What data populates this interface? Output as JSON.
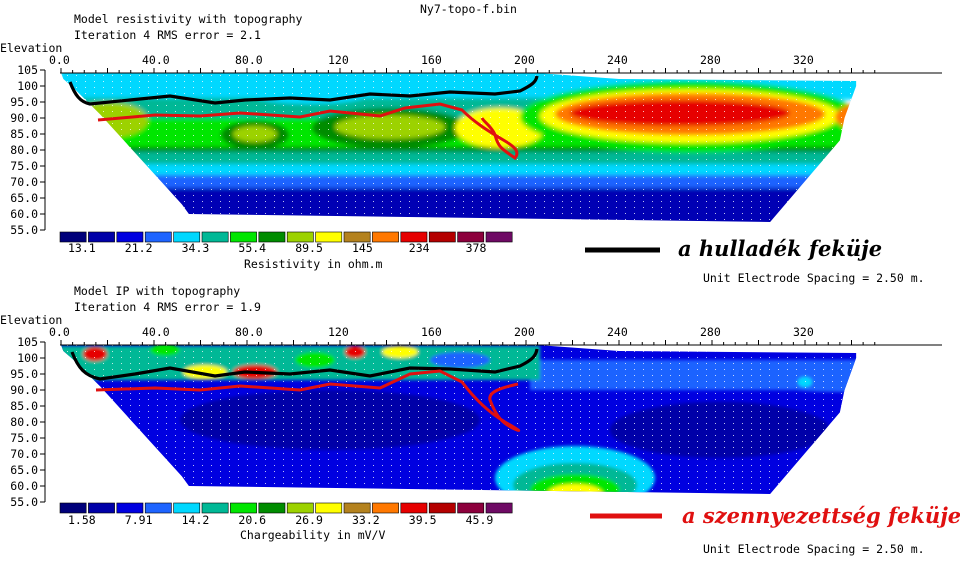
{
  "file_title": "Ny7-topo-f.bin",
  "chart_data": [
    {
      "type": "heatmap",
      "title": "Model resistivity with topography",
      "subtitle": "Iteration 4 RMS error = 2.1",
      "ylabel": "Elevation",
      "x_ticks": [
        "0.0",
        "40.0",
        "80.0",
        "120",
        "160",
        "200",
        "240",
        "280",
        "320"
      ],
      "x_tick_values": [
        0,
        40,
        80,
        120,
        160,
        200,
        240,
        280,
        320
      ],
      "y_ticks": [
        "105",
        "100",
        "95.0",
        "90.0",
        "85.0",
        "80.0",
        "75.0",
        "70.0",
        "65.0",
        "60.0",
        "55.0"
      ],
      "y_tick_values": [
        105,
        100,
        95,
        90,
        85,
        80,
        75,
        70,
        65,
        60,
        55
      ],
      "xlim": [
        0,
        340
      ],
      "ylim": [
        55,
        105
      ],
      "colorbar_label": "Resistivity in ohm.m",
      "colorbar_values": [
        "13.1",
        "21.2",
        "34.3",
        "55.4",
        "89.5",
        "145",
        "234",
        "378"
      ],
      "colorbar_colors": [
        "#00007a",
        "#0000a8",
        "#0000e0",
        "#1e64ff",
        "#00d8ff",
        "#00b896",
        "#00e600",
        "#008c00",
        "#9cd200",
        "#ffff00",
        "#b4821e",
        "#ff7800",
        "#e60000",
        "#b40000",
        "#8c003c",
        "#6e0a64"
      ],
      "spacing_note": "Unit Electrode Spacing = 2.50 m."
    },
    {
      "type": "heatmap",
      "title": "Model IP with topography",
      "subtitle": "Iteration 4 RMS error = 1.9",
      "ylabel": "Elevation",
      "x_ticks": [
        "0.0",
        "40.0",
        "80.0",
        "120",
        "160",
        "200",
        "240",
        "280",
        "320"
      ],
      "x_tick_values": [
        0,
        40,
        80,
        120,
        160,
        200,
        240,
        280,
        320
      ],
      "y_ticks": [
        "105",
        "100",
        "95.0",
        "90.0",
        "85.0",
        "80.0",
        "75.0",
        "70.0",
        "65.0",
        "60.0",
        "55.0"
      ],
      "y_tick_values": [
        105,
        100,
        95,
        90,
        85,
        80,
        75,
        70,
        65,
        60,
        55
      ],
      "xlim": [
        0,
        340
      ],
      "ylim": [
        55,
        105
      ],
      "colorbar_label": "Chargeability in mV/V",
      "colorbar_values": [
        "1.58",
        "7.91",
        "14.2",
        "20.6",
        "26.9",
        "33.2",
        "39.5",
        "45.9"
      ],
      "colorbar_colors": [
        "#00007a",
        "#0000a8",
        "#0000e0",
        "#1e64ff",
        "#00d8ff",
        "#00b896",
        "#00e600",
        "#008c00",
        "#9cd200",
        "#ffff00",
        "#b4821e",
        "#ff7800",
        "#e60000",
        "#b40000",
        "#8c003c",
        "#6e0a64"
      ],
      "spacing_note": "Unit Electrode Spacing = 2.50 m."
    }
  ],
  "annotations": {
    "black_line_label": "a hulladék feküje",
    "black_line_color": "#000000",
    "red_line_label": "a szennyezettség feküje",
    "red_line_color": "#e01010"
  }
}
